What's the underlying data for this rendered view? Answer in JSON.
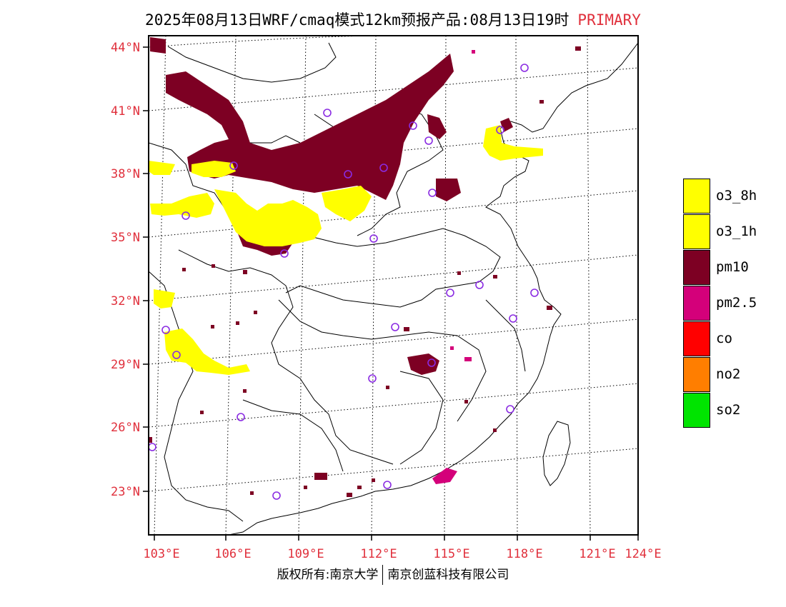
{
  "title": {
    "main": "2025年08月13日WRF/cmaq模式12km预报产品:08月13日19时",
    "badge": "PRIMARY"
  },
  "map": {
    "lat_labels": [
      "44°N",
      "41°N",
      "38°N",
      "35°N",
      "32°N",
      "29°N",
      "26°N",
      "23°N"
    ],
    "lon_labels": [
      "103°E",
      "106°E",
      "109°E",
      "112°E",
      "115°E",
      "118°E",
      "121°E",
      "124°E"
    ]
  },
  "legend": [
    {
      "label": "o3_8h",
      "color": "#ffff00"
    },
    {
      "label": "o3_1h",
      "color": "#ffff00"
    },
    {
      "label": "pm10",
      "color": "#7d0023"
    },
    {
      "label": "pm2.5",
      "color": "#d4007a"
    },
    {
      "label": "co",
      "color": "#ff0000"
    },
    {
      "label": "no2",
      "color": "#ff7e00"
    },
    {
      "label": "so2",
      "color": "#00e400"
    }
  ],
  "footer": {
    "left": "版权所有:南京大学",
    "right": "南京创蓝科技有限公司"
  }
}
